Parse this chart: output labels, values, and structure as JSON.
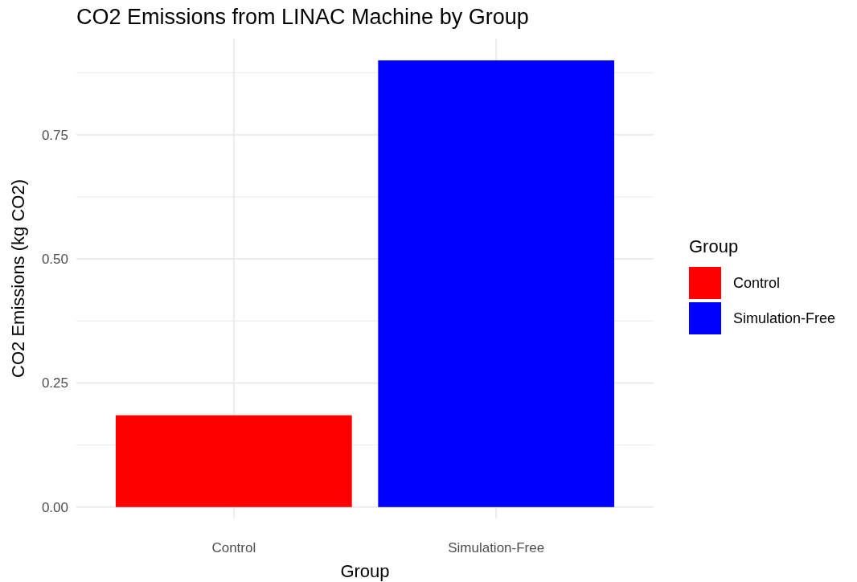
{
  "chart_data": {
    "type": "bar",
    "title": "CO2 Emissions from LINAC Machine by Group",
    "xlabel": "Group",
    "ylabel": "CO2 Emissions (kg CO2)",
    "legend_title": "Group",
    "categories": [
      "Control",
      "Simulation-Free"
    ],
    "series": [
      {
        "name": "Control",
        "color": "#ff0000",
        "values": [
          0.185,
          null
        ]
      },
      {
        "name": "Simulation-Free",
        "color": "#0000ff",
        "values": [
          null,
          0.9
        ]
      }
    ],
    "ylim": [
      -0.023,
      0.944
    ],
    "yticks": [
      {
        "value": 0,
        "label": "0.00"
      },
      {
        "value": 0.125,
        "label": null
      },
      {
        "value": 0.25,
        "label": "0.25"
      },
      {
        "value": 0.375,
        "label": null
      },
      {
        "value": 0.5,
        "label": "0.50"
      },
      {
        "value": 0.625,
        "label": null
      },
      {
        "value": 0.75,
        "label": "0.75"
      },
      {
        "value": 0.875,
        "label": null
      }
    ],
    "grid": true,
    "legend": "right"
  }
}
